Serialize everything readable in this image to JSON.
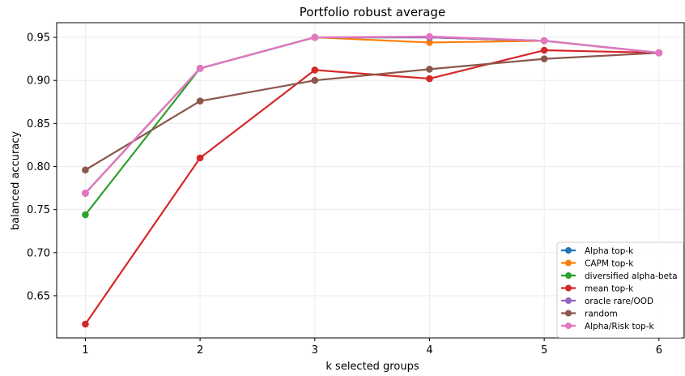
{
  "chart_data": {
    "type": "line",
    "title": "Portfolio robust average",
    "xlabel": "k selected groups",
    "ylabel": "balanced accuracy",
    "x": [
      1,
      2,
      3,
      4,
      5,
      6
    ],
    "x_ticks": [
      "1",
      "2",
      "3",
      "4",
      "5",
      "6"
    ],
    "xlim": [
      0.75,
      6.22
    ],
    "ylim": [
      0.601,
      0.967
    ],
    "y_ticks": [
      0.65,
      0.7,
      0.75,
      0.8,
      0.85,
      0.9,
      0.95
    ],
    "y_tick_labels": [
      "0.65",
      "0.70",
      "0.75",
      "0.80",
      "0.85",
      "0.90",
      "0.95"
    ],
    "grid": true,
    "legend_position": "lower-right",
    "series": [
      {
        "name": "Alpha top-k",
        "color": "#1f77b4",
        "values": [
          0.769,
          0.914,
          0.95,
          0.95,
          0.946,
          0.932
        ]
      },
      {
        "name": "CAPM top-k",
        "color": "#ff7f0e",
        "values": [
          0.769,
          0.914,
          0.95,
          0.944,
          0.946,
          0.932
        ]
      },
      {
        "name": "diversified alpha-beta",
        "color": "#2ca02c",
        "values": [
          0.744,
          0.914,
          0.95,
          0.95,
          0.946,
          0.932
        ]
      },
      {
        "name": "mean top-k",
        "color": "#d62728",
        "values": [
          0.617,
          0.81,
          0.912,
          0.902,
          0.935,
          0.932
        ]
      },
      {
        "name": "oracle rare/OOD",
        "color": "#9467bd",
        "values": [
          0.769,
          0.914,
          0.95,
          0.95,
          0.946,
          0.932
        ]
      },
      {
        "name": "random",
        "color": "#8c564b",
        "values": [
          0.796,
          0.876,
          0.9,
          0.913,
          0.925,
          0.932
        ]
      },
      {
        "name": "Alpha/Risk top-k",
        "color": "#e377c2",
        "values": [
          0.769,
          0.914,
          0.95,
          0.951,
          0.946,
          0.932
        ]
      }
    ]
  }
}
